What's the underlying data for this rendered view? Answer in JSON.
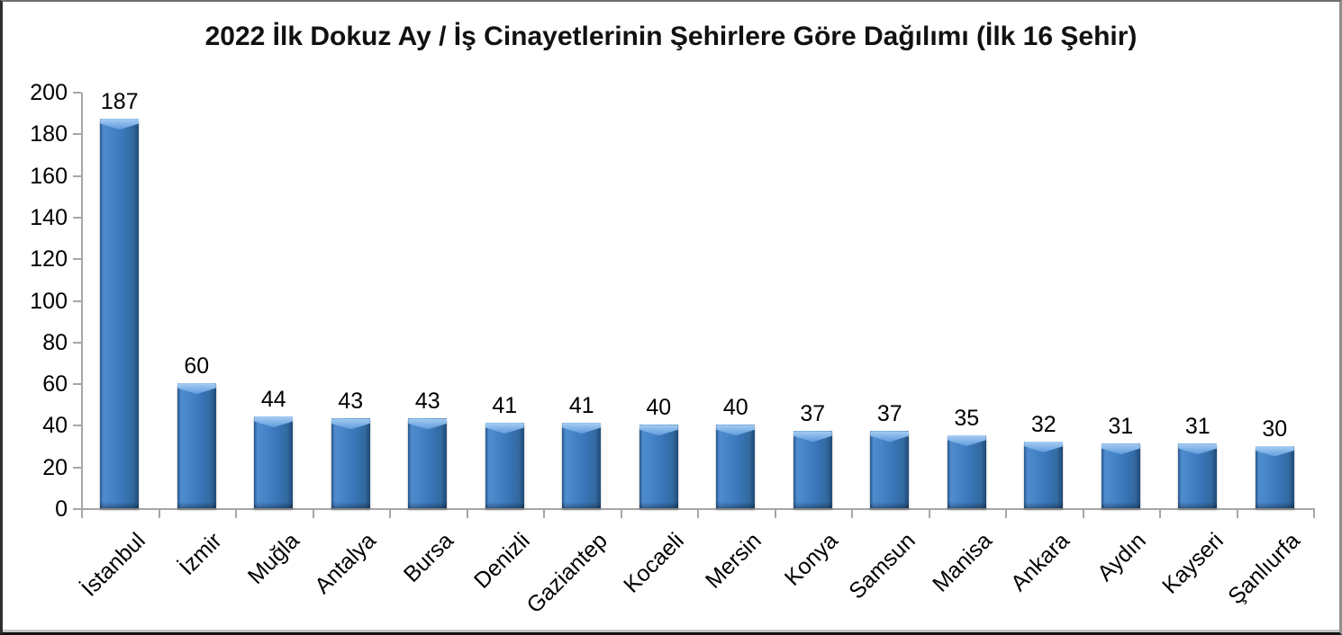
{
  "chart_data": {
    "type": "bar",
    "title": "2022 İlk Dokuz Ay / İş Cinayetlerinin Şehirlere Göre Dağılımı (İlk 16 Şehir)",
    "categories": [
      "İstanbul",
      "İzmir",
      "Muğla",
      "Antalya",
      "Bursa",
      "Denizli",
      "Gaziantep",
      "Kocaeli",
      "Mersin",
      "Konya",
      "Samsun",
      "Manisa",
      "Ankara",
      "Aydın",
      "Kayseri",
      "Şanlıurfa"
    ],
    "values": [
      187,
      60,
      44,
      43,
      43,
      41,
      41,
      40,
      40,
      37,
      37,
      35,
      32,
      31,
      31,
      30
    ],
    "xlabel": "",
    "ylabel": "",
    "ylim": [
      0,
      200
    ],
    "ytick_step": 20,
    "grid": false,
    "legend": "none",
    "data_labels": true,
    "x_label_rotation_deg": 45,
    "colors": {
      "bar_fill": "#3b79bd",
      "bar_edge_dark": "#27588c",
      "bar_highlight": "#a8cef4",
      "axis": "#a6a6a6",
      "text": "#000000",
      "background": "#ffffff"
    }
  }
}
